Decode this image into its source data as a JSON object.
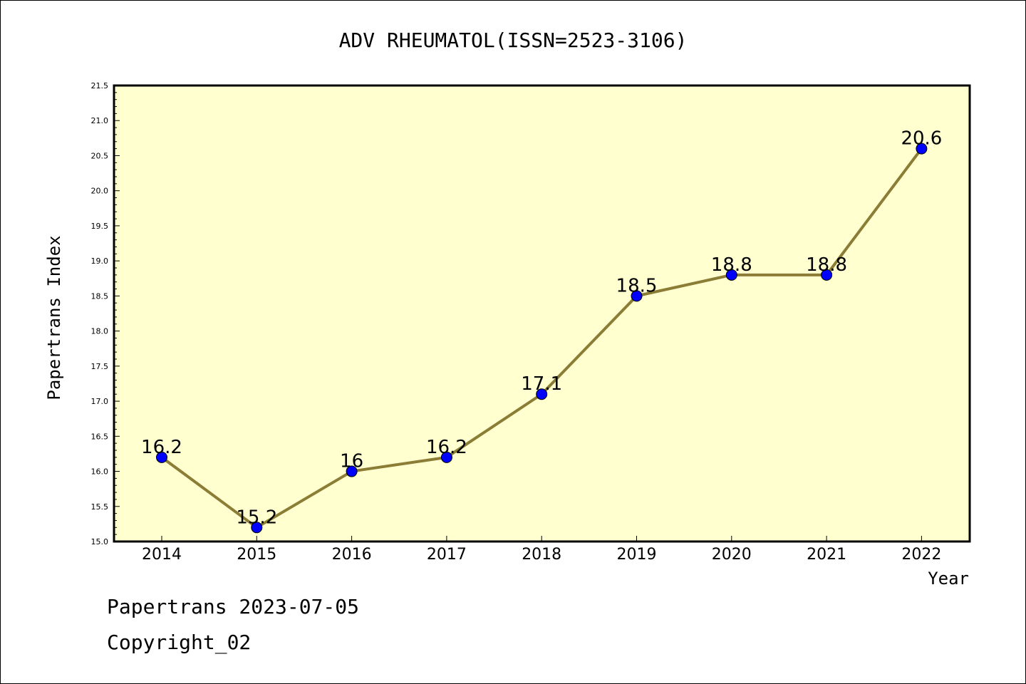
{
  "chart_data": {
    "type": "line",
    "title": "ADV RHEUMATOL(ISSN=2523-3106)",
    "xlabel": "Year",
    "ylabel": "Papertrans Index",
    "x": [
      "2014",
      "2015",
      "2016",
      "2017",
      "2018",
      "2019",
      "2020",
      "2021",
      "2022"
    ],
    "series": [
      {
        "values": [
          16.2,
          15.2,
          16.0,
          16.2,
          17.1,
          18.5,
          18.8,
          18.8,
          20.6
        ],
        "labels": [
          "16.2",
          "15.2",
          "16",
          "16.2",
          "17.1",
          "18.5",
          "18.8",
          "18.8",
          "20.6"
        ]
      }
    ],
    "ylim": [
      15.0,
      21.5
    ],
    "yticks": [
      "15.0",
      "15.5",
      "16.0",
      "16.5",
      "17.0",
      "17.5",
      "18.0",
      "18.5",
      "19.0",
      "19.5",
      "20.0",
      "20.5",
      "21.0",
      "21.5"
    ],
    "grid": false,
    "colors": {
      "plot_bg": "#ffffd0",
      "line": "#8b7d35",
      "marker": "#0000ff"
    }
  },
  "footer": {
    "line1": "Papertrans 2023-07-05",
    "line2": "Copyright_02"
  }
}
